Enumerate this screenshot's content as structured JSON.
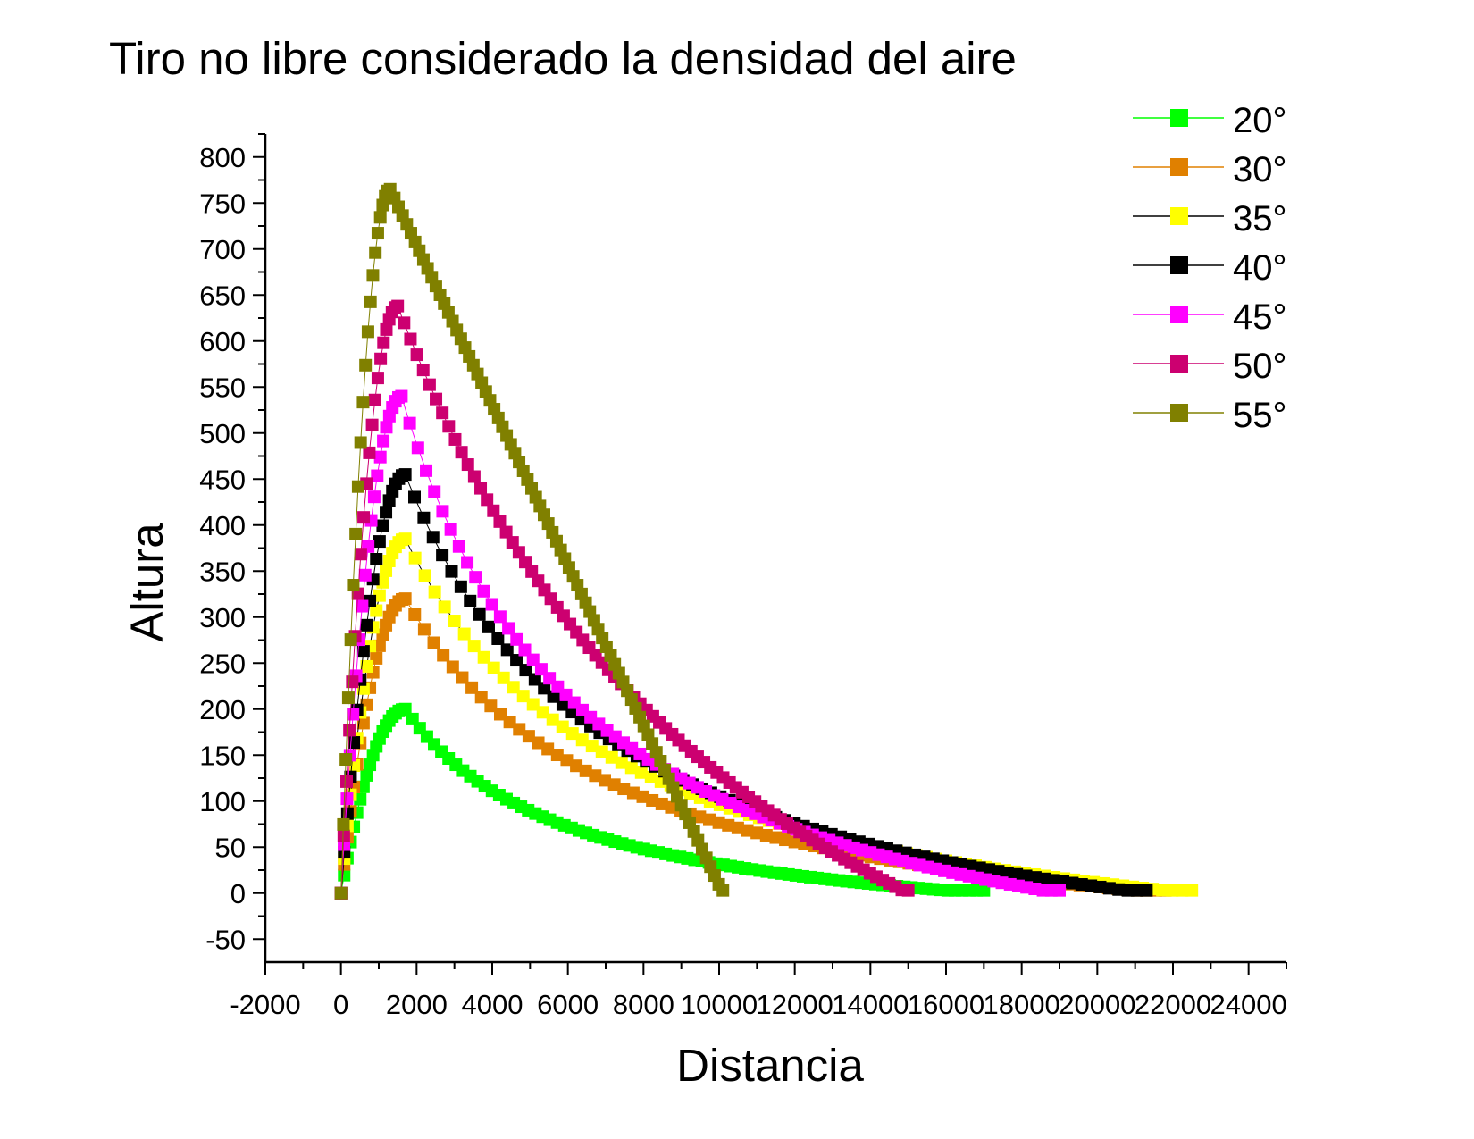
{
  "chart_data": {
    "type": "scatter",
    "title": "Tiro no libre considerado la densidad del aire",
    "xlabel": "Distancia",
    "ylabel": "Altura",
    "xlim": [
      -2000,
      25000
    ],
    "ylim": [
      -75,
      825
    ],
    "x_ticks": [
      "-2000",
      "0",
      "2000",
      "4000",
      "6000",
      "8000",
      "10000",
      "12000",
      "14000",
      "16000",
      "18000",
      "20000",
      "22000",
      "24000"
    ],
    "y_ticks": [
      "-50",
      "0",
      "50",
      "100",
      "150",
      "200",
      "250",
      "300",
      "350",
      "400",
      "450",
      "500",
      "550",
      "600",
      "650",
      "700",
      "750",
      "800"
    ],
    "legend_position": "top-right",
    "series": [
      {
        "name": "20°",
        "color": "#00ff00",
        "peak_x": 1700,
        "peak_y": 200,
        "range_x": 17000
      },
      {
        "name": "30°",
        "color": "#e08000",
        "peak_x": 1700,
        "peak_y": 320,
        "range_x": 21800
      },
      {
        "name": "35°",
        "color": "#ffff00",
        "peak_x": 1700,
        "peak_y": 385,
        "range_x": 22500
      },
      {
        "name": "40°",
        "color": "#000000",
        "peak_x": 1700,
        "peak_y": 455,
        "range_x": 21300
      },
      {
        "name": "45°",
        "color": "#ff00ff",
        "peak_x": 1600,
        "peak_y": 540,
        "range_x": 19000
      },
      {
        "name": "50°",
        "color": "#cc0070",
        "peak_x": 1500,
        "peak_y": 638,
        "range_x": 15000
      },
      {
        "name": "55°",
        "color": "#808000",
        "peak_x": 1300,
        "peak_y": 765,
        "range_x": 10100
      }
    ]
  }
}
